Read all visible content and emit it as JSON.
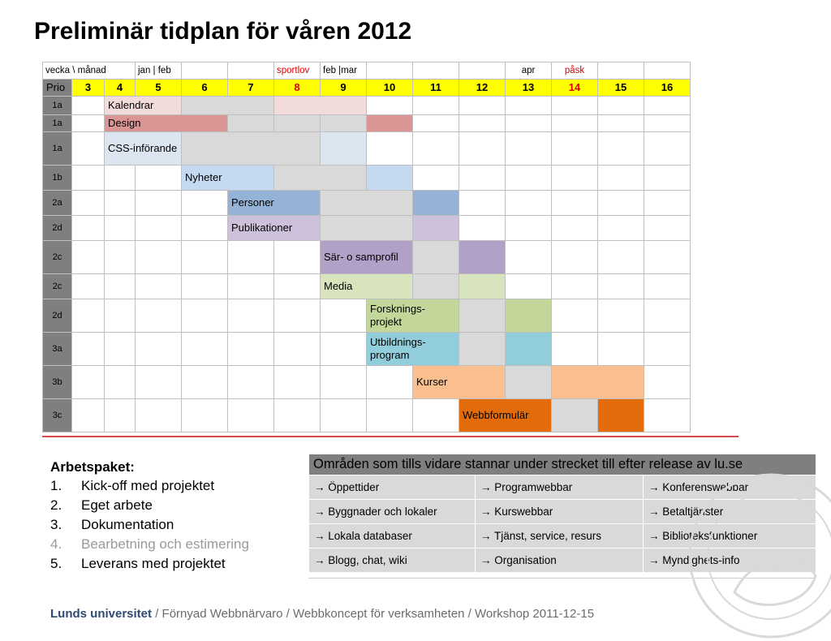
{
  "title": "Preliminär tidplan för våren 2012",
  "schedule": {
    "header": {
      "vecka_manad": "vecka \\ månad",
      "jan_feb": "jan | feb",
      "sportlov": "sportlov",
      "feb_mar": "feb |mar",
      "apr": "apr",
      "pask": "påsk"
    },
    "prio_label": "Prio",
    "weeks": [
      "3",
      "4",
      "5",
      "6",
      "7",
      "8",
      "9",
      "10",
      "11",
      "12",
      "13",
      "14",
      "15",
      "16"
    ],
    "rows": [
      {
        "prio": "1a",
        "label": "Kalendrar"
      },
      {
        "prio": "1a",
        "label": "Design"
      },
      {
        "prio": "1a",
        "label": "CSS-införande"
      },
      {
        "prio": "1b",
        "label": "Nyheter"
      },
      {
        "prio": "2a",
        "label": "Personer"
      },
      {
        "prio": "2d",
        "label": "Publikationer"
      },
      {
        "prio": "2c",
        "label": "Sär- o samprofil"
      },
      {
        "prio": "2c",
        "label": "Media"
      },
      {
        "prio": "2d",
        "label": "Forsknings-projekt"
      },
      {
        "prio": "3a",
        "label": "Utbildnings-program"
      },
      {
        "prio": "3b",
        "label": "Kurser"
      },
      {
        "prio": "3c",
        "label": "Webbformulär"
      }
    ]
  },
  "arbetspaket": {
    "title": "Arbetspaket:",
    "items": [
      {
        "num": "1.",
        "label": "Kick-off med projektet"
      },
      {
        "num": "2.",
        "label": "Eget arbete"
      },
      {
        "num": "3.",
        "label": "Dokumentation"
      },
      {
        "num": "4.",
        "label": "Bearbetning och estimering"
      },
      {
        "num": "5.",
        "label": "Leverans med projektet"
      }
    ]
  },
  "areas": {
    "header": "Områden som tills vidare stannar under strecket till efter release av lu.se",
    "rows": [
      [
        "→ Öppettider",
        "→ Programwebbar",
        "→ Konferenswebbar"
      ],
      [
        "→ Byggnader och lokaler",
        "→ Kurswebbar",
        "→ Betaltjänster"
      ],
      [
        "→ Lokala databaser",
        "→ Tjänst, service, resurs",
        "→ Biblioteksfunktioner"
      ],
      [
        "→ Blogg, chat,  wiki",
        "→ Organisation",
        "→ Myndighets-info"
      ]
    ]
  },
  "footer": {
    "university": "Lunds universitet",
    "rest": " / Förnyad Webbnärvaro / Webbkoncept  för verksamheten  / Workshop 2011-12-15"
  },
  "colors": {
    "week_header": "#ffff00",
    "prio_gray": "#7f7f7f",
    "neutral": "#d9d9d9",
    "kalendrar": "#f2dcdb",
    "design": "#da9694",
    "css": "#dce6f1",
    "nyheter": "#c5d9f1",
    "personer": "#95b3d7",
    "publikationer": "#ccc0da",
    "sarprofil": "#b1a0c7",
    "media": "#d8e4bc",
    "forskning": "#c4d79b",
    "utbildning": "#92cddc",
    "kurser": "#fabf8f",
    "webbformular": "#e26b0a"
  }
}
